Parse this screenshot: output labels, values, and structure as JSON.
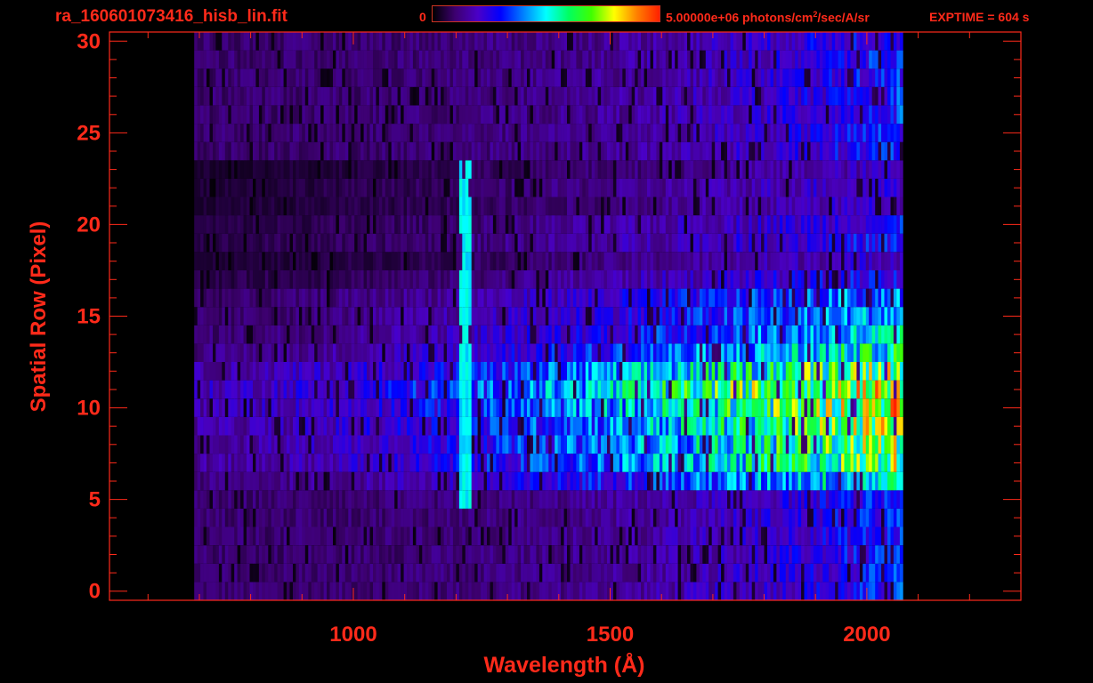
{
  "header": {
    "filename": "ra_160601073416_hisb_lin.fit",
    "colorbar_min": "0",
    "colorbar_max_prefix": "5.00000e+06 photons/cm",
    "colorbar_max_sup": "2",
    "colorbar_max_suffix": "/sec/A/sr",
    "exptime": "EXPTIME = 604 s"
  },
  "colors": {
    "axis": "#ff2a1a",
    "background": "#000000",
    "colormap": [
      "#000000",
      "#3d0070",
      "#4a00c8",
      "#0000ff",
      "#0080ff",
      "#00ffff",
      "#00ff60",
      "#40ff00",
      "#ffff00",
      "#ff8000",
      "#ff2000"
    ]
  },
  "chart_data": {
    "type": "heatmap",
    "xlabel": "Wavelength (Å)",
    "ylabel": "Spatial Row (Pixel)",
    "xlim": [
      525,
      2300
    ],
    "ylim": [
      -0.5,
      30.5
    ],
    "x_ticks": [
      1000,
      1500,
      2000
    ],
    "y_ticks": [
      0,
      5,
      10,
      15,
      20,
      25,
      30
    ],
    "colorbar_range": [
      0,
      5000000
    ],
    "colorbar_unit": "photons/cm2/sec/A/sr",
    "data_extent": {
      "wavelength": [
        690,
        2070
      ],
      "rows": [
        0,
        30
      ]
    },
    "emission_line": {
      "wavelength": 1216,
      "rows": [
        5,
        23
      ],
      "level": 0.45
    },
    "row_profile": [
      {
        "row": 0,
        "level": 0.02
      },
      {
        "row": 1,
        "level": 0.02
      },
      {
        "row": 2,
        "level": 0.03
      },
      {
        "row": 3,
        "level": 0.05
      },
      {
        "row": 4,
        "level": 0.08
      },
      {
        "row": 5,
        "level": 0.12
      },
      {
        "row": 6,
        "level": 0.55
      },
      {
        "row": 7,
        "level": 0.7
      },
      {
        "row": 8,
        "level": 0.72
      },
      {
        "row": 9,
        "level": 0.75
      },
      {
        "row": 10,
        "level": 0.8
      },
      {
        "row": 11,
        "level": 0.88
      },
      {
        "row": 12,
        "level": 0.75
      },
      {
        "row": 13,
        "level": 0.58
      },
      {
        "row": 14,
        "level": 0.5
      },
      {
        "row": 15,
        "level": 0.45
      },
      {
        "row": 16,
        "level": 0.42
      },
      {
        "row": 17,
        "level": 0.3
      },
      {
        "row": 18,
        "level": 0.22
      },
      {
        "row": 19,
        "level": 0.3
      },
      {
        "row": 20,
        "level": 0.28
      },
      {
        "row": 21,
        "level": 0.22
      },
      {
        "row": 22,
        "level": 0.24
      },
      {
        "row": 23,
        "level": 0.2
      },
      {
        "row": 24,
        "level": 0.15
      },
      {
        "row": 25,
        "level": 0.12
      },
      {
        "row": 26,
        "level": 0.1
      },
      {
        "row": 27,
        "level": 0.1
      },
      {
        "row": 28,
        "level": 0.1
      },
      {
        "row": 29,
        "level": 0.08
      },
      {
        "row": 30,
        "level": 0.08
      }
    ]
  }
}
